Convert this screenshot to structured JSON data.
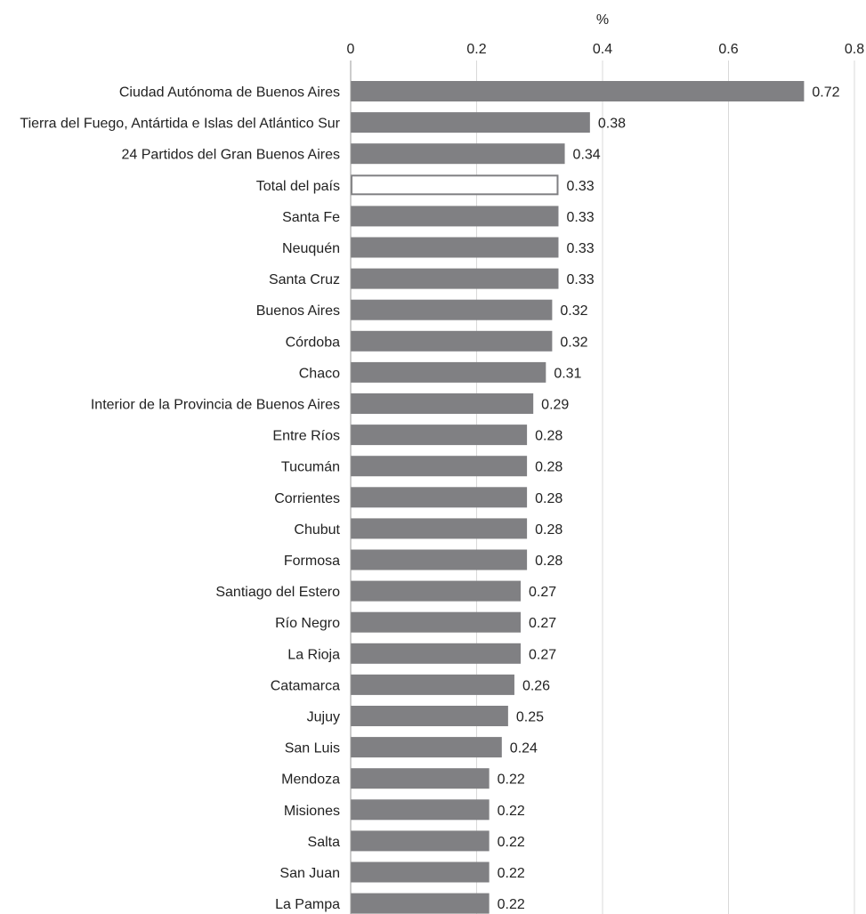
{
  "chart_data": {
    "type": "bar",
    "orientation": "horizontal",
    "xlabel": "%",
    "xlim": [
      0,
      0.8
    ],
    "ticks": [
      0,
      0.2,
      0.4,
      0.6,
      0.8
    ],
    "tick_labels": [
      "0",
      "0.2",
      "0.4",
      "0.6",
      "0.8"
    ],
    "categories": [
      "Ciudad Autónoma de Buenos Aires",
      "Tierra del Fuego, Antártida e Islas del Atlántico Sur",
      "24 Partidos del Gran Buenos Aires",
      "Total del país",
      "Santa Fe",
      "Neuquén",
      "Santa Cruz",
      "Buenos Aires",
      "Córdoba",
      "Chaco",
      "Interior de la Provincia de Buenos Aires",
      "Entre Ríos",
      "Tucumán",
      "Corrientes",
      "Chubut",
      "Formosa",
      "Santiago del Estero",
      "Río Negro",
      "La Rioja",
      "Catamarca",
      "Jujuy",
      "San Luis",
      "Mendoza",
      "Misiones",
      "Salta",
      "San Juan",
      "La Pampa"
    ],
    "values": [
      0.72,
      0.38,
      0.34,
      0.33,
      0.33,
      0.33,
      0.33,
      0.32,
      0.32,
      0.31,
      0.29,
      0.28,
      0.28,
      0.28,
      0.28,
      0.28,
      0.27,
      0.27,
      0.27,
      0.26,
      0.25,
      0.24,
      0.22,
      0.22,
      0.22,
      0.22,
      0.22
    ],
    "value_labels": [
      "0.72",
      "0.38",
      "0.34",
      "0.33",
      "0.33",
      "0.33",
      "0.33",
      "0.32",
      "0.32",
      "0.31",
      "0.29",
      "0.28",
      "0.28",
      "0.28",
      "0.28",
      "0.28",
      "0.27",
      "0.27",
      "0.27",
      "0.26",
      "0.25",
      "0.24",
      "0.22",
      "0.22",
      "0.22",
      "0.22",
      "0.22"
    ],
    "highlight_category": "Total del país",
    "bar_color": "#808083",
    "highlight_fill": "#ffffff",
    "highlight_stroke": "#808083",
    "grid": true,
    "legend": "none"
  }
}
